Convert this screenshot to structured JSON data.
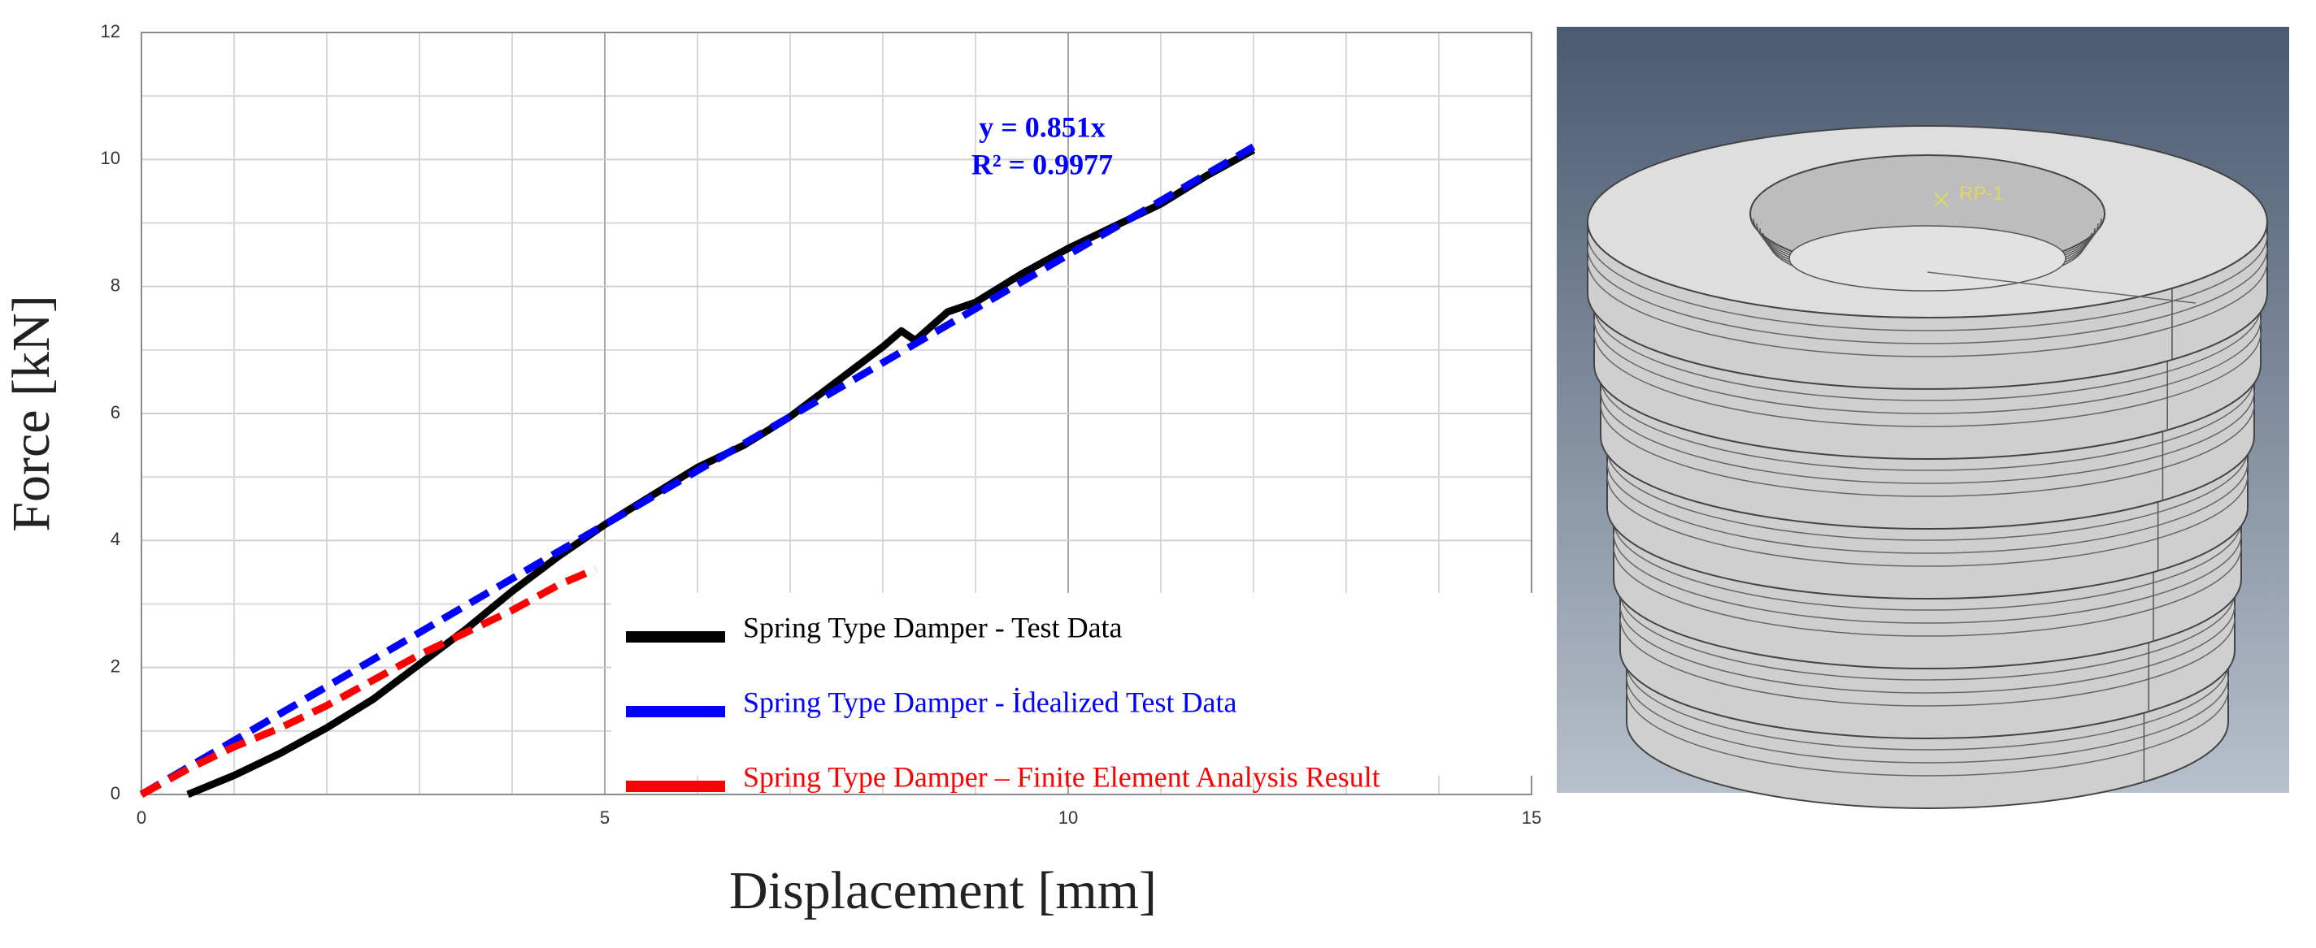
{
  "chart_data": {
    "type": "line",
    "x_label": "Displacement [mm]",
    "y_label": "Force [kN]",
    "xlim": [
      0,
      15
    ],
    "xticks": [
      0,
      5,
      10,
      15
    ],
    "ylim": [
      0,
      12
    ],
    "yticks": [
      0,
      2,
      4,
      6,
      8,
      10,
      12
    ],
    "grid": true,
    "legend": "lower right",
    "annotations": [
      "y = 0.851x",
      "R² = 0.9977"
    ],
    "series": [
      {
        "name": "Spring Type Damper - Test Data",
        "color": "#000000",
        "dash": false,
        "x": [
          0.5,
          1,
          1.5,
          2,
          2.5,
          3,
          3.5,
          4,
          4.5,
          5,
          5.5,
          6,
          6.5,
          7,
          7.5,
          8,
          8.2,
          8.35,
          8.7,
          9,
          9.5,
          10,
          10.5,
          11,
          11.5,
          12
        ],
        "values": [
          0,
          0.3,
          0.65,
          1.05,
          1.5,
          2.05,
          2.6,
          3.2,
          3.75,
          4.25,
          4.7,
          5.15,
          5.5,
          5.95,
          6.5,
          7.05,
          7.3,
          7.15,
          7.6,
          7.75,
          8.2,
          8.6,
          8.95,
          9.3,
          9.75,
          10.15
        ]
      },
      {
        "name": "Spring Type Damper -  İdealized Test Data",
        "color": "#0000ff",
        "dash": true,
        "x": [
          0,
          12
        ],
        "values": [
          0,
          10.2
        ]
      },
      {
        "name": "Spring Type Damper – Finite Element Analysis Result",
        "color": "#ff0000",
        "dash": true,
        "x": [
          0,
          0.5,
          1,
          1.5,
          2,
          2.5,
          3,
          3.5,
          4,
          4.5,
          4.9
        ],
        "values": [
          0,
          0.4,
          0.75,
          1.05,
          1.4,
          1.8,
          2.2,
          2.55,
          2.9,
          3.3,
          3.55
        ]
      }
    ]
  },
  "model": {
    "label": "RP-1"
  }
}
